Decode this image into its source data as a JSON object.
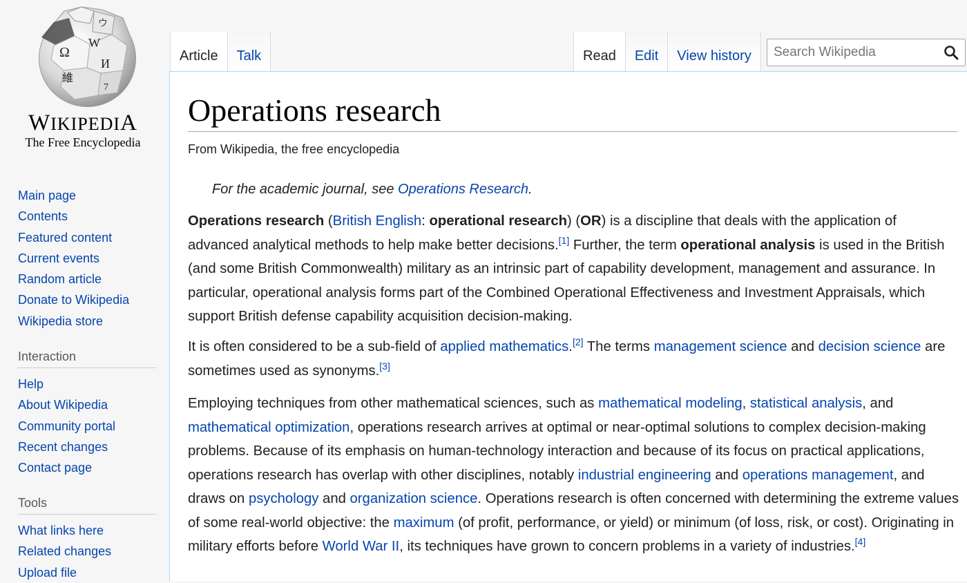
{
  "logo": {
    "wordmark": "Wikipedia",
    "tagline": "The Free Encyclopedia"
  },
  "sidebar": {
    "main_links": [
      "Main page",
      "Contents",
      "Featured content",
      "Current events",
      "Random article",
      "Donate to Wikipedia",
      "Wikipedia store"
    ],
    "interaction": {
      "heading": "Interaction",
      "links": [
        "Help",
        "About Wikipedia",
        "Community portal",
        "Recent changes",
        "Contact page"
      ]
    },
    "tools": {
      "heading": "Tools",
      "links": [
        "What links here",
        "Related changes",
        "Upload file"
      ]
    }
  },
  "tabs": {
    "namespaces": [
      "Article",
      "Talk"
    ],
    "views": [
      "Read",
      "Edit",
      "View history"
    ],
    "selected_namespace": "Article",
    "selected_view": "Read"
  },
  "search": {
    "placeholder": "Search Wikipedia",
    "icon": "search-icon"
  },
  "article": {
    "title": "Operations research",
    "site_sub": "From Wikipedia, the free encyclopedia",
    "hatnote": {
      "prefix": "For the academic journal, see ",
      "link": "Operations Research",
      "suffix": "."
    },
    "paragraphs": [
      [
        {
          "t": "b",
          "v": "Operations research"
        },
        {
          "t": "s",
          "v": " ("
        },
        {
          "t": "a",
          "v": "British English"
        },
        {
          "t": "s",
          "v": ": "
        },
        {
          "t": "b",
          "v": "operational research"
        },
        {
          "t": "s",
          "v": ") ("
        },
        {
          "t": "b",
          "v": "OR"
        },
        {
          "t": "s",
          "v": ") is a discipline that deals with the application of advanced analytical methods to help make better decisions."
        },
        {
          "t": "ref",
          "v": "[1]"
        },
        {
          "t": "s",
          "v": " Further, the term "
        },
        {
          "t": "b",
          "v": "operational analysis"
        },
        {
          "t": "s",
          "v": " is used in the British (and some British Commonwealth) military as an intrinsic part of capability development, management and assurance. In particular, operational analysis forms part of the Combined Operational Effectiveness and Investment Appraisals, which support British defense capability acquisition decision-making."
        }
      ],
      [
        {
          "t": "s",
          "v": "It is often considered to be a sub-field of "
        },
        {
          "t": "a",
          "v": "applied mathematics"
        },
        {
          "t": "s",
          "v": "."
        },
        {
          "t": "ref",
          "v": "[2]"
        },
        {
          "t": "s",
          "v": " The terms "
        },
        {
          "t": "a",
          "v": "management science"
        },
        {
          "t": "s",
          "v": " and "
        },
        {
          "t": "a",
          "v": "decision science"
        },
        {
          "t": "s",
          "v": " are sometimes used as synonyms."
        },
        {
          "t": "ref",
          "v": "[3]"
        }
      ],
      [
        {
          "t": "s",
          "v": "Employing techniques from other mathematical sciences, such as "
        },
        {
          "t": "a",
          "v": "mathematical modeling"
        },
        {
          "t": "s",
          "v": ", "
        },
        {
          "t": "a",
          "v": "statistical analysis"
        },
        {
          "t": "s",
          "v": ", and "
        },
        {
          "t": "a",
          "v": "mathematical optimization"
        },
        {
          "t": "s",
          "v": ", operations research arrives at optimal or near-optimal solutions to complex decision-making problems. Because of its emphasis on human-technology interaction and because of its focus on practical applications, operations research has overlap with other disciplines, notably "
        },
        {
          "t": "a",
          "v": "industrial engineering"
        },
        {
          "t": "s",
          "v": " and "
        },
        {
          "t": "a",
          "v": "operations management"
        },
        {
          "t": "s",
          "v": ", and draws on "
        },
        {
          "t": "a",
          "v": "psychology"
        },
        {
          "t": "s",
          "v": " and "
        },
        {
          "t": "a",
          "v": "organization science"
        },
        {
          "t": "s",
          "v": ". Operations research is often concerned with determining the extreme values of some real-world objective: the "
        },
        {
          "t": "a",
          "v": "maximum"
        },
        {
          "t": "s",
          "v": " (of profit, performance, or yield) or minimum (of loss, risk, or cost). Originating in military efforts before "
        },
        {
          "t": "a",
          "v": "World War II"
        },
        {
          "t": "s",
          "v": ", its techniques have grown to concern problems in a variety of industries."
        },
        {
          "t": "ref",
          "v": "[4]"
        }
      ]
    ]
  },
  "colors": {
    "link": "#0645ad",
    "text": "#202122",
    "sidebar_bg": "#f6f6f6",
    "content_border": "#a7d7f9"
  }
}
